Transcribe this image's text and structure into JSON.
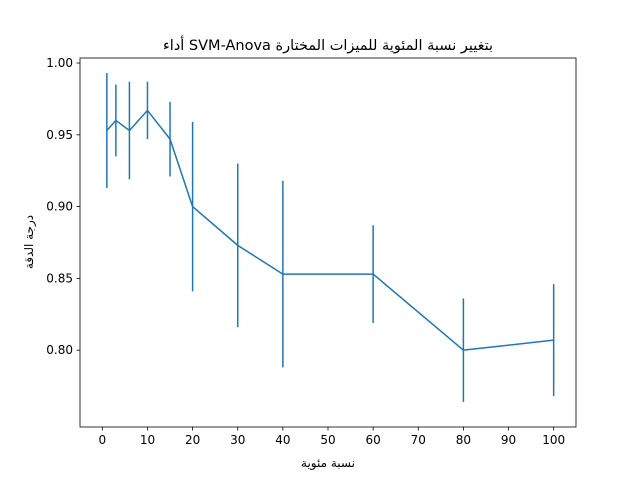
{
  "chart_data": {
    "type": "line",
    "title": "أداء SVM-Anova بتغيير نسبة المئوية للميزات المختارة",
    "xlabel": "نسبة مئوية",
    "ylabel": "درجة الدقة",
    "x": [
      1,
      3,
      6,
      10,
      15,
      20,
      30,
      40,
      60,
      80,
      100
    ],
    "series": [
      {
        "values": [
          0.953,
          0.96,
          0.953,
          0.967,
          0.947,
          0.9,
          0.873,
          0.853,
          0.853,
          0.8,
          0.807
        ],
        "error": [
          0.04,
          0.025,
          0.034,
          0.02,
          0.026,
          0.059,
          0.057,
          0.065,
          0.034,
          0.036,
          0.039
        ],
        "color": "#1f77b4"
      }
    ],
    "xlim": [
      -4.95,
      104.95
    ],
    "ylim": [
      0.7465,
      1.0035
    ],
    "xticks": [
      "0",
      "10",
      "20",
      "30",
      "40",
      "50",
      "60",
      "70",
      "80",
      "90",
      "100"
    ],
    "yticks": [
      "0.80",
      "0.85",
      "0.90",
      "0.95",
      "1.00"
    ],
    "grid": false,
    "legend": false
  }
}
